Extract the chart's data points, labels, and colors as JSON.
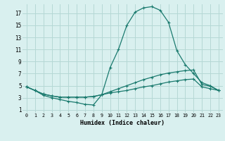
{
  "xlabel": "Humidex (Indice chaleur)",
  "background_color": "#d9f0ef",
  "grid_color": "#b5d8d5",
  "line_color": "#1a7a6e",
  "xlim": [
    -0.5,
    23.5
  ],
  "ylim": [
    0.5,
    18.5
  ],
  "xticks": [
    0,
    1,
    2,
    3,
    4,
    5,
    6,
    7,
    8,
    9,
    10,
    11,
    12,
    13,
    14,
    15,
    16,
    17,
    18,
    19,
    20,
    21,
    22,
    23
  ],
  "yticks": [
    1,
    3,
    5,
    7,
    9,
    11,
    13,
    15,
    17
  ],
  "line1_x": [
    0,
    1,
    2,
    3,
    4,
    5,
    6,
    7,
    8,
    9,
    10,
    11,
    12,
    13,
    14,
    15,
    16,
    17,
    18,
    19,
    20,
    21,
    22,
    23
  ],
  "line1_y": [
    4.8,
    4.2,
    3.4,
    3.0,
    2.7,
    2.4,
    2.2,
    1.9,
    1.8,
    3.5,
    8.0,
    11.0,
    15.0,
    17.2,
    17.9,
    18.1,
    17.5,
    15.5,
    10.8,
    8.5,
    7.0,
    5.5,
    5.0,
    4.2
  ],
  "line2_x": [
    0,
    1,
    2,
    3,
    4,
    5,
    6,
    7,
    8,
    9,
    10,
    11,
    12,
    13,
    14,
    15,
    16,
    17,
    18,
    19,
    20,
    21,
    22,
    23
  ],
  "line2_y": [
    4.8,
    4.2,
    3.6,
    3.3,
    3.1,
    3.1,
    3.1,
    3.1,
    3.2,
    3.5,
    4.0,
    4.5,
    5.0,
    5.5,
    6.0,
    6.4,
    6.8,
    7.1,
    7.3,
    7.5,
    7.6,
    5.2,
    4.9,
    4.2
  ],
  "line3_x": [
    0,
    1,
    2,
    3,
    4,
    5,
    6,
    7,
    8,
    9,
    10,
    11,
    12,
    13,
    14,
    15,
    16,
    17,
    18,
    19,
    20,
    21,
    22,
    23
  ],
  "line3_y": [
    4.8,
    4.2,
    3.6,
    3.3,
    3.1,
    3.1,
    3.1,
    3.1,
    3.2,
    3.5,
    3.8,
    4.0,
    4.2,
    4.5,
    4.8,
    5.0,
    5.3,
    5.6,
    5.8,
    6.0,
    6.1,
    4.8,
    4.5,
    4.2
  ]
}
